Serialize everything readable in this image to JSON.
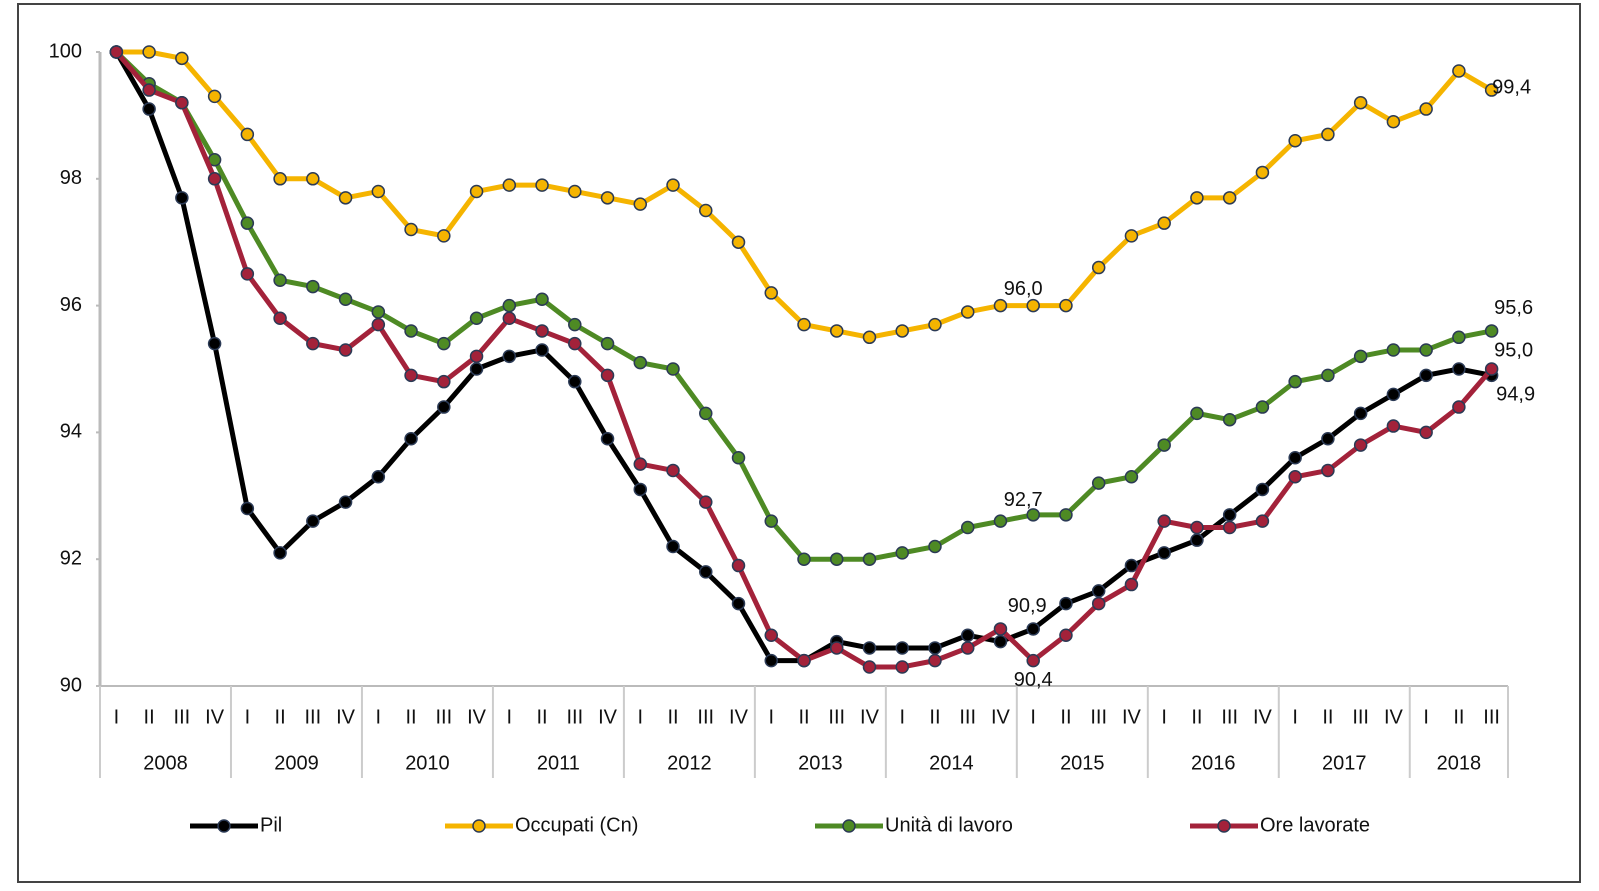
{
  "chart_data": {
    "type": "line",
    "categories": [
      "I",
      "II",
      "III",
      "IV",
      "I",
      "II",
      "III",
      "IV",
      "I",
      "II",
      "III",
      "IV",
      "I",
      "II",
      "III",
      "IV",
      "I",
      "II",
      "III",
      "IV",
      "I",
      "II",
      "III",
      "IV",
      "I",
      "II",
      "III",
      "IV",
      "I",
      "II",
      "III",
      "IV",
      "I",
      "II",
      "III",
      "IV",
      "I",
      "II",
      "III",
      "IV",
      "I",
      "II",
      "III"
    ],
    "groups": [
      "2008",
      "2009",
      "2010",
      "2011",
      "2012",
      "2013",
      "2014",
      "2015",
      "2016",
      "2017",
      "2018"
    ],
    "ylim": [
      90,
      100
    ],
    "yticks": [
      90,
      92,
      94,
      96,
      98,
      100
    ],
    "legend": "bottom",
    "series": [
      {
        "name": "Pil",
        "color": "#000000",
        "values": [
          100,
          99.1,
          97.7,
          95.4,
          92.8,
          92.1,
          92.6,
          92.9,
          93.3,
          93.9,
          94.4,
          95.0,
          95.2,
          95.3,
          94.8,
          93.9,
          93.1,
          92.2,
          91.8,
          91.3,
          90.4,
          90.4,
          90.7,
          90.6,
          90.6,
          90.6,
          90.8,
          90.7,
          90.9,
          91.3,
          91.5,
          91.9,
          92.1,
          92.3,
          92.7,
          93.1,
          93.6,
          93.9,
          94.3,
          94.6,
          94.9,
          95.0,
          94.9
        ],
        "value_labels": [
          null,
          null,
          null,
          null,
          null,
          null,
          null,
          null,
          null,
          null,
          null,
          null,
          null,
          null,
          null,
          null,
          null,
          null,
          null,
          null,
          null,
          null,
          null,
          null,
          null,
          null,
          null,
          null,
          "90,9",
          null,
          null,
          null,
          null,
          null,
          null,
          null,
          null,
          null,
          null,
          null,
          null,
          null,
          "94,9"
        ]
      },
      {
        "name": "Occupati (Cn)",
        "color": "#f5b400",
        "values": [
          100,
          100,
          99.9,
          99.3,
          98.7,
          98.0,
          98.0,
          97.7,
          97.8,
          97.2,
          97.1,
          97.8,
          97.9,
          97.9,
          97.8,
          97.7,
          97.6,
          97.9,
          97.5,
          97.0,
          96.2,
          95.7,
          95.6,
          95.5,
          95.6,
          95.7,
          95.9,
          96.0,
          96.0,
          96.0,
          96.6,
          97.1,
          97.3,
          97.7,
          97.7,
          98.1,
          98.6,
          98.7,
          99.2,
          98.9,
          99.1,
          99.7,
          99.4
        ],
        "value_labels": [
          null,
          null,
          null,
          null,
          null,
          null,
          null,
          null,
          null,
          null,
          null,
          null,
          null,
          null,
          null,
          null,
          null,
          null,
          null,
          null,
          null,
          null,
          null,
          null,
          null,
          null,
          null,
          null,
          "96,0",
          null,
          null,
          null,
          null,
          null,
          null,
          null,
          null,
          null,
          null,
          null,
          null,
          null,
          "99,4"
        ]
      },
      {
        "name": "Unità di lavoro",
        "color": "#4e8a24",
        "values": [
          100,
          99.5,
          99.2,
          98.3,
          97.3,
          96.4,
          96.3,
          96.1,
          95.9,
          95.6,
          95.4,
          95.8,
          96.0,
          96.1,
          95.7,
          95.4,
          95.1,
          95.0,
          94.3,
          93.6,
          92.6,
          92.0,
          92.0,
          92.0,
          92.1,
          92.2,
          92.5,
          92.6,
          92.7,
          92.7,
          93.2,
          93.3,
          93.8,
          94.3,
          94.2,
          94.4,
          94.8,
          94.9,
          95.2,
          95.3,
          95.3,
          95.5,
          95.6
        ],
        "value_labels": [
          null,
          null,
          null,
          null,
          null,
          null,
          null,
          null,
          null,
          null,
          null,
          null,
          null,
          null,
          null,
          null,
          null,
          null,
          null,
          null,
          null,
          null,
          null,
          null,
          null,
          null,
          null,
          null,
          "92,7",
          null,
          null,
          null,
          null,
          null,
          null,
          null,
          null,
          null,
          null,
          null,
          null,
          null,
          "95,6"
        ]
      },
      {
        "name": "Ore lavorate",
        "color": "#a3223a",
        "values": [
          100,
          99.4,
          99.2,
          98.0,
          96.5,
          95.8,
          95.4,
          95.3,
          95.7,
          94.9,
          94.8,
          95.2,
          95.8,
          95.6,
          95.4,
          94.9,
          93.5,
          93.4,
          92.9,
          91.9,
          90.8,
          90.4,
          90.6,
          90.3,
          90.3,
          90.4,
          90.6,
          90.9,
          90.4,
          90.8,
          91.3,
          91.6,
          92.6,
          92.5,
          92.5,
          92.6,
          93.3,
          93.4,
          93.8,
          94.1,
          94.0,
          94.4,
          95.0
        ],
        "value_labels": [
          null,
          null,
          null,
          null,
          null,
          null,
          null,
          null,
          null,
          null,
          null,
          null,
          null,
          null,
          null,
          null,
          null,
          null,
          null,
          null,
          null,
          null,
          null,
          null,
          null,
          null,
          null,
          null,
          "90,4",
          null,
          null,
          null,
          null,
          null,
          null,
          null,
          null,
          null,
          null,
          null,
          null,
          null,
          "95,0"
        ]
      }
    ]
  }
}
